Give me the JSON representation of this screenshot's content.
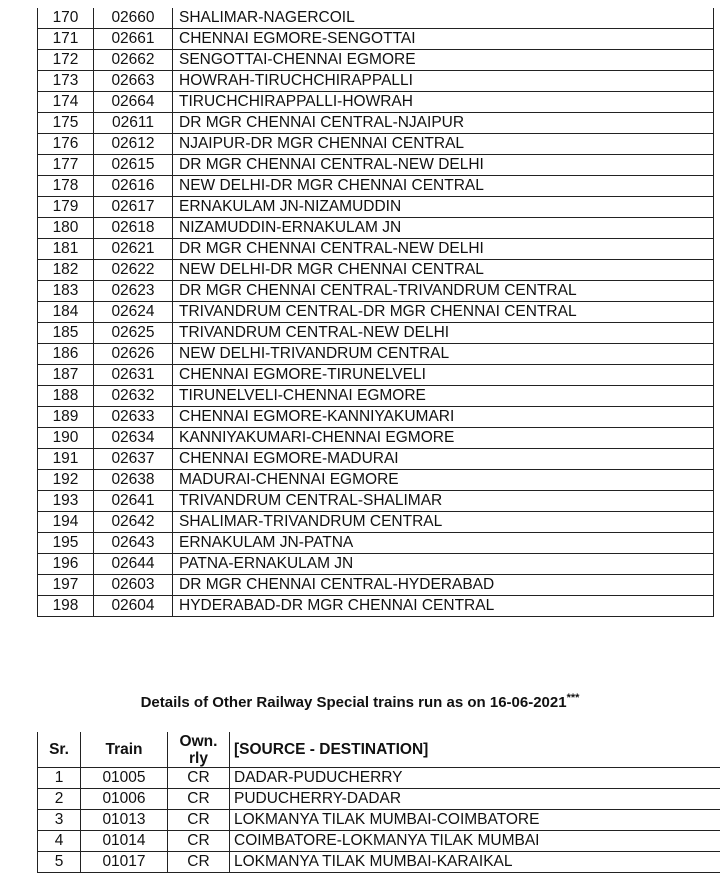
{
  "table1": {
    "rows": [
      [
        "170",
        "02660",
        "SHALIMAR-NAGERCOIL"
      ],
      [
        "171",
        "02661",
        "CHENNAI EGMORE-SENGOTTAI"
      ],
      [
        "172",
        "02662",
        "SENGOTTAI-CHENNAI EGMORE"
      ],
      [
        "173",
        "02663",
        "HOWRAH-TIRUCHCHIRAPPALLI"
      ],
      [
        "174",
        "02664",
        "TIRUCHCHIRAPPALLI-HOWRAH"
      ],
      [
        "175",
        "02611",
        "DR MGR CHENNAI CENTRAL-NJAIPUR"
      ],
      [
        "176",
        "02612",
        "NJAIPUR-DR MGR CHENNAI CENTRAL"
      ],
      [
        "177",
        "02615",
        "DR MGR CHENNAI CENTRAL-NEW DELHI"
      ],
      [
        "178",
        "02616",
        "NEW DELHI-DR MGR CHENNAI CENTRAL"
      ],
      [
        "179",
        "02617",
        "ERNAKULAM JN-NIZAMUDDIN"
      ],
      [
        "180",
        "02618",
        "NIZAMUDDIN-ERNAKULAM JN"
      ],
      [
        "181",
        "02621",
        "DR MGR CHENNAI CENTRAL-NEW DELHI"
      ],
      [
        "182",
        "02622",
        "NEW DELHI-DR MGR CHENNAI CENTRAL"
      ],
      [
        "183",
        "02623",
        "DR MGR CHENNAI CENTRAL-TRIVANDRUM CENTRAL"
      ],
      [
        "184",
        "02624",
        "TRIVANDRUM CENTRAL-DR MGR CHENNAI CENTRAL"
      ],
      [
        "185",
        "02625",
        "TRIVANDRUM CENTRAL-NEW DELHI"
      ],
      [
        "186",
        "02626",
        "NEW DELHI-TRIVANDRUM CENTRAL"
      ],
      [
        "187",
        "02631",
        "CHENNAI EGMORE-TIRUNELVELI"
      ],
      [
        "188",
        "02632",
        "TIRUNELVELI-CHENNAI EGMORE"
      ],
      [
        "189",
        "02633",
        "CHENNAI EGMORE-KANNIYAKUMARI"
      ],
      [
        "190",
        "02634",
        "KANNIYAKUMARI-CHENNAI EGMORE"
      ],
      [
        "191",
        "02637",
        "CHENNAI EGMORE-MADURAI"
      ],
      [
        "192",
        "02638",
        "MADURAI-CHENNAI EGMORE"
      ],
      [
        "193",
        "02641",
        "TRIVANDRUM CENTRAL-SHALIMAR"
      ],
      [
        "194",
        "02642",
        "SHALIMAR-TRIVANDRUM CENTRAL"
      ],
      [
        "195",
        "02643",
        "ERNAKULAM JN-PATNA"
      ],
      [
        "196",
        "02644",
        "PATNA-ERNAKULAM JN"
      ],
      [
        "197",
        "02603",
        "DR MGR CHENNAI CENTRAL-HYDERABAD"
      ],
      [
        "198",
        "02604",
        "HYDERABAD-DR MGR CHENNAI CENTRAL"
      ]
    ]
  },
  "section2": {
    "title": "Details of Other Railway Special trains run as on 16-06-2021",
    "title_mark": "***",
    "headers": [
      "Sr.",
      "Train",
      "Own. rly",
      "[SOURCE - DESTINATION]"
    ],
    "rows": [
      [
        "1",
        "01005",
        "CR",
        "DADAR-PUDUCHERRY"
      ],
      [
        "2",
        "01006",
        "CR",
        "PUDUCHERRY-DADAR"
      ],
      [
        "3",
        "01013",
        "CR",
        "LOKMANYA TILAK MUMBAI-COIMBATORE"
      ],
      [
        "4",
        "01014",
        "CR",
        "COIMBATORE-LOKMANYA TILAK MUMBAI"
      ],
      [
        "5",
        "01017",
        "CR",
        "LOKMANYA TILAK MUMBAI-KARAIKAL"
      ]
    ]
  }
}
